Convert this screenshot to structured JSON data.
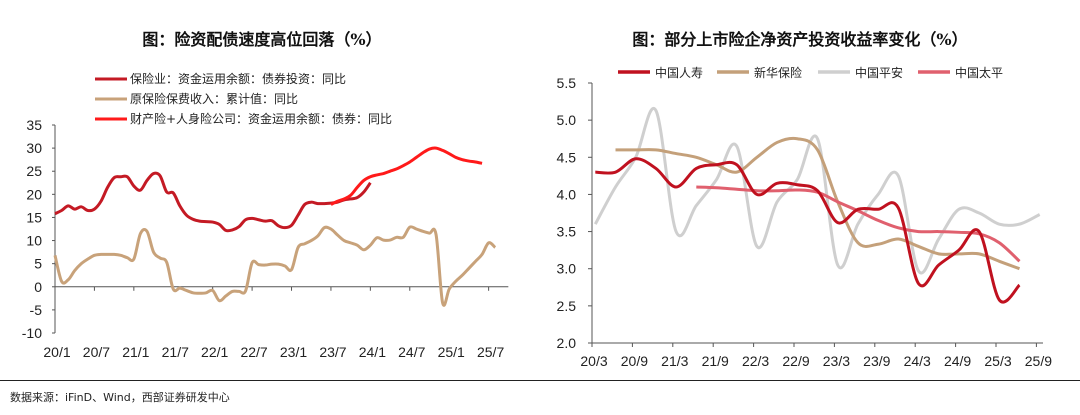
{
  "left_title": "图：险资配债速度高位回落（%）",
  "right_title": "图：部分上市险企净资产投资收益率变化（%）",
  "source": "数据来源：iFinD、Wind，西部证券研发中心",
  "chart_data": [
    {
      "type": "line",
      "title": "图：险资配债速度高位回落（%）",
      "x_start": "20/1",
      "frequency": "monthly",
      "x_ticks": [
        "20/1",
        "20/7",
        "21/1",
        "21/7",
        "22/1",
        "22/7",
        "23/1",
        "23/7",
        "24/1",
        "24/7",
        "25/1",
        "25/7"
      ],
      "ylim": [
        -10,
        35
      ],
      "y_ticks": [
        35,
        30,
        25,
        20,
        15,
        10,
        5,
        0,
        -5,
        -10
      ],
      "legend_placement": "top-left",
      "series": [
        {
          "name": "保险业：资金运用余额：债券投资：同比",
          "color": "#c41a24",
          "start_index": 0,
          "values": [
            15.8,
            16.5,
            17.5,
            16.8,
            17.3,
            16.5,
            16.8,
            18.5,
            21.5,
            23.6,
            23.8,
            23.8,
            21.8,
            20.9,
            23,
            24.5,
            24,
            20.5,
            20.3,
            17.5,
            15.5,
            14.6,
            14.2,
            14.1,
            14,
            13.5,
            12.2,
            12.3,
            13,
            14.5,
            14.8,
            14.5,
            14.2,
            14.3,
            13.2,
            12.8,
            13.3,
            15.5,
            17.8,
            18.3,
            18,
            18,
            18.1,
            18.3,
            18.8,
            19,
            19.3,
            20.5,
            22.5
          ]
        },
        {
          "name": "原保险保费收入：累计值：同比",
          "color": "#c8a27a",
          "start_index": 0,
          "values": [
            6.8,
            1.2,
            1.5,
            3.5,
            5,
            6,
            6.8,
            7,
            7,
            7,
            6.8,
            6.3,
            6,
            11.5,
            12,
            7.5,
            6.2,
            5.3,
            -0.5,
            -0.3,
            -0.8,
            -1.3,
            -1.4,
            -1.3,
            -0.8,
            -3,
            -2,
            -1,
            -1,
            -0.9,
            5.2,
            4.8,
            4.7,
            4.9,
            4.9,
            4.5,
            3.7,
            8.5,
            9.3,
            10,
            11,
            12.8,
            12.5,
            11.2,
            10,
            9.5,
            9,
            8,
            9,
            10.6,
            10.1,
            10.1,
            10.7,
            10.7,
            12.9,
            12.5,
            12,
            11.6,
            11.3,
            -3.5,
            -0.5,
            1.2,
            2.5,
            4,
            5.5,
            7,
            9.5,
            8.5
          ]
        },
        {
          "name": "财产险+人身险公司：资金运用余额：债券：同比",
          "color": "#ff1a1a",
          "start_index": 42,
          "values": [
            17.8,
            18.5,
            19,
            19.8,
            21.5,
            23,
            23.8,
            24.2,
            24.5,
            25,
            25.5,
            26.2,
            27,
            28,
            29,
            29.8,
            30,
            29.5,
            28.8,
            28,
            27.5,
            27.2,
            27,
            26.7
          ]
        }
      ]
    },
    {
      "type": "line",
      "title": "图：部分上市险企净资产投资收益率变化（%）",
      "x_start": "20/3",
      "frequency": "quarterly",
      "x_ticks": [
        "20/3",
        "20/9",
        "21/3",
        "21/9",
        "22/3",
        "22/9",
        "23/3",
        "23/9",
        "24/3",
        "24/9",
        "25/3",
        "25/9"
      ],
      "ylim": [
        2.0,
        5.5
      ],
      "y_ticks": [
        "5.5",
        "5.0",
        "4.5",
        "4.0",
        "3.5",
        "3.0",
        "2.5",
        "2.0"
      ],
      "legend_placement": "top",
      "series": [
        {
          "name": "中国人寿",
          "color": "#c0111f",
          "start_index": 0,
          "values": [
            4.3,
            4.3,
            4.48,
            4.35,
            4.1,
            4.35,
            4.4,
            4.4,
            4.0,
            4.15,
            4.13,
            4.05,
            3.62,
            3.8,
            3.8,
            3.82,
            2.8,
            3.05,
            3.25,
            3.5,
            2.58,
            2.78
          ]
        },
        {
          "name": "新华保险",
          "color": "#c4a07a",
          "start_index": 1,
          "values": [
            4.6,
            4.6,
            4.6,
            4.55,
            4.5,
            4.4,
            4.3,
            4.5,
            4.7,
            4.75,
            4.6,
            3.9,
            3.35,
            3.33,
            3.4,
            3.3,
            3.2,
            3.2,
            3.2,
            3.1,
            3.0
          ]
        },
        {
          "name": "中国平安",
          "color": "#cfcfcf",
          "start_index": 0,
          "values": [
            3.6,
            4.1,
            4.5,
            5.13,
            3.5,
            3.85,
            4.2,
            4.65,
            3.3,
            3.9,
            4.2,
            4.75,
            3.05,
            3.6,
            4.0,
            4.25,
            2.97,
            3.4,
            3.8,
            3.75,
            3.6,
            3.6,
            3.73
          ]
        },
        {
          "name": "中国太平",
          "color": "#e0606e",
          "start_index": 5,
          "values": [
            4.1,
            4.09,
            4.07,
            4.05,
            4.05,
            4.06,
            4.03,
            3.9,
            3.78,
            3.65,
            3.55,
            3.5,
            3.5,
            3.49,
            3.47,
            3.35,
            3.1
          ]
        }
      ]
    }
  ]
}
